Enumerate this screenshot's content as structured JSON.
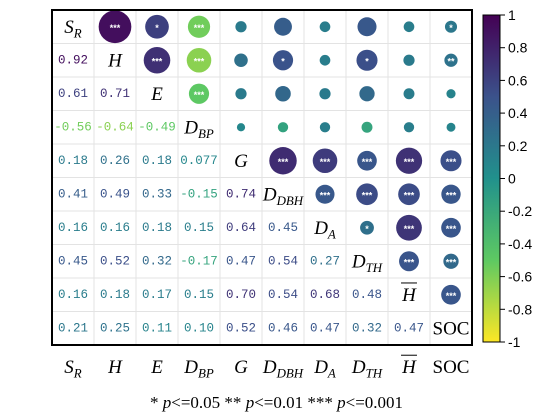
{
  "chart_data": {
    "type": "heatmap",
    "variables": [
      {
        "base": "S",
        "sub": "R",
        "overline": false
      },
      {
        "base": "H",
        "sub": "",
        "overline": false
      },
      {
        "base": "E",
        "sub": "",
        "overline": false
      },
      {
        "base": "D",
        "sub": "BP",
        "overline": false
      },
      {
        "base": "G",
        "sub": "",
        "overline": false
      },
      {
        "base": "D",
        "sub": "DBH",
        "overline": false
      },
      {
        "base": "D",
        "sub": "A",
        "overline": false
      },
      {
        "base": "D",
        "sub": "TH",
        "overline": false
      },
      {
        "base": "H",
        "sub": "",
        "overline": true
      },
      {
        "base": "SOC",
        "sub": "",
        "overline": false,
        "upright": true
      }
    ],
    "lower_values": [
      [],
      [
        "0.92"
      ],
      [
        "0.61",
        "0.71"
      ],
      [
        "-0.56",
        "-0.64",
        "-0.49"
      ],
      [
        "0.18",
        "0.26",
        "0.18",
        "0.077"
      ],
      [
        "0.41",
        "0.49",
        "0.33",
        "-0.15",
        "0.74"
      ],
      [
        "0.16",
        "0.16",
        "0.18",
        "0.15",
        "0.64",
        "0.45"
      ],
      [
        "0.45",
        "0.52",
        "0.32",
        "-0.17",
        "0.47",
        "0.54",
        "0.27"
      ],
      [
        "0.16",
        "0.18",
        "0.17",
        "0.15",
        "0.70",
        "0.54",
        "0.68",
        "0.48"
      ],
      [
        "0.21",
        "0.25",
        "0.11",
        "0.10",
        "0.52",
        "0.46",
        "0.47",
        "0.32",
        "0.47"
      ]
    ],
    "significance": [
      [],
      [
        "***"
      ],
      [
        "*",
        "***"
      ],
      [
        "***",
        "***",
        "***"
      ],
      [
        "",
        "",
        "",
        ""
      ],
      [
        "",
        "*",
        "",
        "",
        "***"
      ],
      [
        "",
        "",
        "",
        "",
        "***",
        "***"
      ],
      [
        "",
        "*",
        "",
        "",
        "***",
        "***",
        "*"
      ],
      [
        "",
        "",
        "",
        "",
        "***",
        "***",
        "***",
        "***"
      ],
      [
        "*",
        "**",
        "",
        "",
        "***",
        "***",
        "***",
        "***",
        "***"
      ]
    ],
    "colorbar": {
      "min": -1,
      "max": 1,
      "ticks": [
        "1",
        "0.8",
        "0.6",
        "0.4",
        "0.2",
        "0",
        "-0.2",
        "-0.4",
        "-0.6",
        "-0.8",
        "-1"
      ],
      "colors": [
        "#440154",
        "#3b528b",
        "#21918c",
        "#5ec962",
        "#fde725"
      ]
    },
    "legend_text": "* p<=0.05  ** p<=0.01  *** p<=0.001"
  }
}
